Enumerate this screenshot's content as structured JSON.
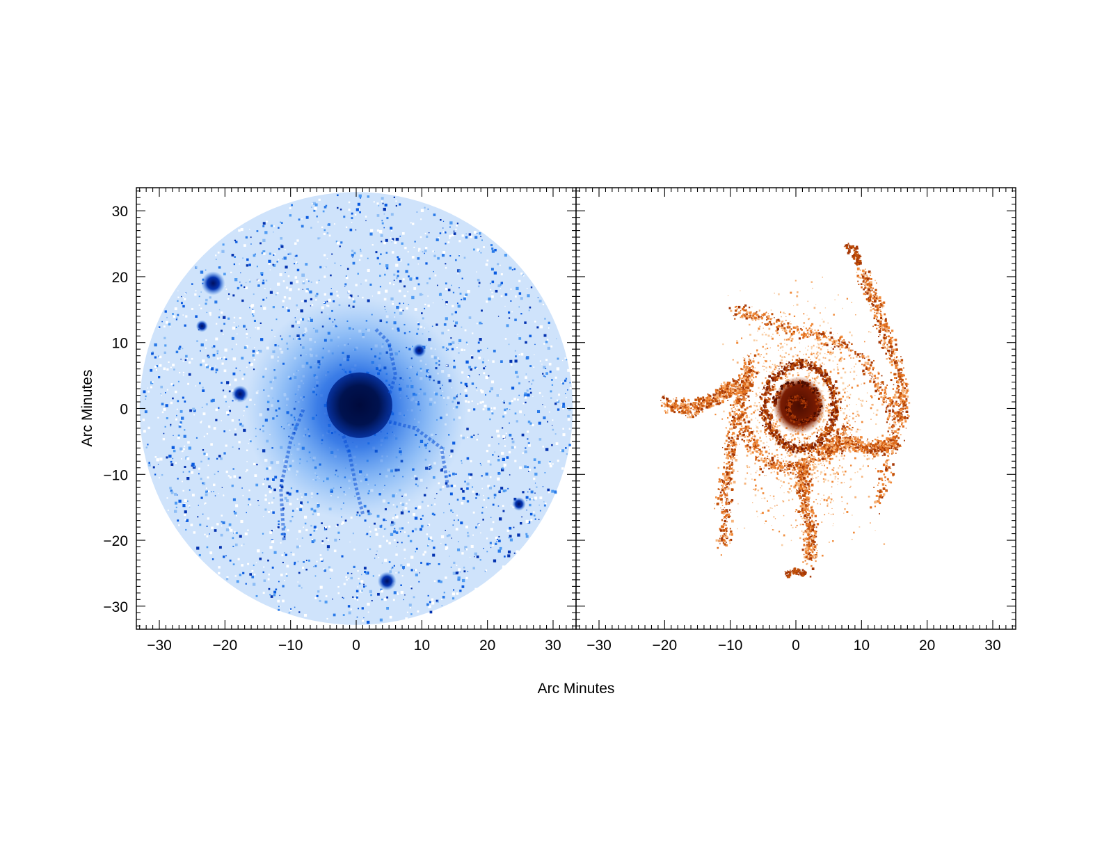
{
  "chart_data": {
    "type": "heatmap",
    "xlabel": "Arc Minutes",
    "ylabel": "Arc Minutes",
    "xlim": [
      -33.5,
      33.5
    ],
    "ylim": [
      -33.5,
      33.5
    ],
    "tick_values": [
      -30,
      -20,
      -10,
      0,
      10,
      20,
      30
    ],
    "tick_labels": [
      "−30",
      "−20",
      "−10",
      "0",
      "10",
      "20",
      "30"
    ],
    "minor_tick_step": 1,
    "panels": [
      {
        "id": "left",
        "colormap": "blue",
        "colors": {
          "dark": "#00156e",
          "mid": "#0a4fd6",
          "light": "#4f9bf2"
        },
        "field_radius": 33,
        "core": {
          "x": 0.5,
          "y": 0.5,
          "radius": 5
        },
        "bright_sources": [
          {
            "x": -21.8,
            "y": 19.0,
            "r": 1.4
          },
          {
            "x": -23.5,
            "y": 12.5,
            "r": 0.7
          },
          {
            "x": -17.7,
            "y": 2.2,
            "r": 1.0
          },
          {
            "x": 9.6,
            "y": 8.8,
            "r": 0.8
          },
          {
            "x": 4.7,
            "y": -26.2,
            "r": 1.1
          },
          {
            "x": 24.8,
            "y": -14.5,
            "r": 0.8
          }
        ]
      },
      {
        "id": "right",
        "colormap": "orange",
        "colors": {
          "dark": "#6e1400",
          "mid": "#c25008",
          "light": "#f08a3a"
        },
        "core": {
          "x": 0.5,
          "y": 0.5,
          "radius": 4
        }
      }
    ]
  }
}
